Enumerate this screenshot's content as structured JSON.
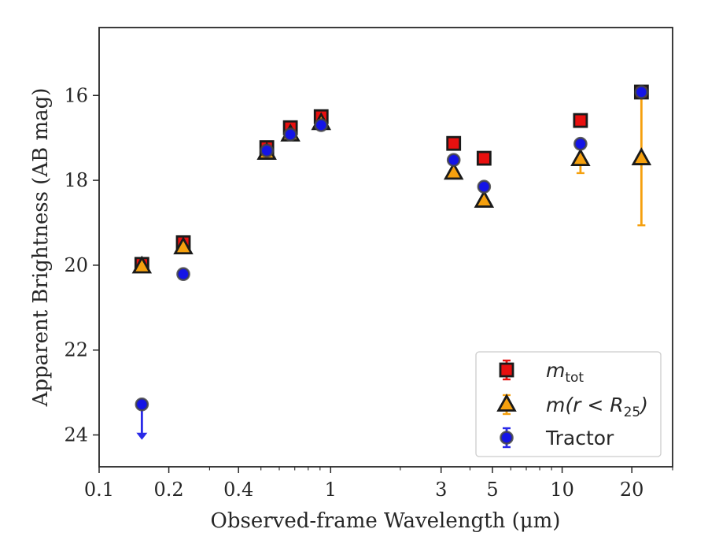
{
  "chart_data": {
    "type": "scatter",
    "title": "",
    "xlabel": "Observed-frame Wavelength (μm)",
    "ylabel": "Apparent Brightness (AB mag)",
    "xscale": "log",
    "xlim": [
      0.1,
      30
    ],
    "ylim": [
      24.75,
      14.4
    ],
    "y_inverted": true,
    "x_ticks": [
      {
        "value": 0.1,
        "label": "0.1"
      },
      {
        "value": 0.2,
        "label": "0.2"
      },
      {
        "value": 0.4,
        "label": "0.4"
      },
      {
        "value": 1,
        "label": "1"
      },
      {
        "value": 3,
        "label": "3"
      },
      {
        "value": 5,
        "label": "5"
      },
      {
        "value": 10,
        "label": "10"
      },
      {
        "value": 20,
        "label": "20"
      }
    ],
    "y_ticks": [
      {
        "value": 16,
        "label": "16"
      },
      {
        "value": 18,
        "label": "18"
      },
      {
        "value": 20,
        "label": "20"
      },
      {
        "value": 22,
        "label": "22"
      },
      {
        "value": 24,
        "label": "24"
      }
    ],
    "legend_position": "lower-right",
    "series": [
      {
        "key": "mtot",
        "legend": {
          "base": "m",
          "sub": "tot",
          "suffix": ""
        },
        "marker": "square",
        "color": "#e8100f",
        "edge": "#1a1a1a",
        "errcolor": "#e8100f",
        "points": [
          {
            "x": 0.153,
            "y": 19.98,
            "err": 0.08
          },
          {
            "x": 0.231,
            "y": 19.47,
            "err": 0.06
          },
          {
            "x": 0.53,
            "y": 17.23,
            "err": 0.05
          },
          {
            "x": 0.67,
            "y": 16.76,
            "err": 0.05
          },
          {
            "x": 0.91,
            "y": 16.5,
            "err": 0.05
          },
          {
            "x": 3.4,
            "y": 17.13,
            "err": 0.03
          },
          {
            "x": 4.6,
            "y": 17.48,
            "err": 0.03
          },
          {
            "x": 12.0,
            "y": 16.59,
            "err": 0.03
          },
          {
            "x": 22.0,
            "y": 15.92,
            "err": 0.03
          }
        ]
      },
      {
        "key": "mr25",
        "legend": {
          "base": "m(r < R",
          "sub": "25",
          "suffix": ")"
        },
        "marker": "triangle",
        "color": "#f5a00e",
        "edge": "#1a1a1a",
        "errcolor": "#f5a00e",
        "points": [
          {
            "x": 0.153,
            "y": 20.03,
            "err": 0.05
          },
          {
            "x": 0.231,
            "y": 19.58,
            "err": 0.05
          },
          {
            "x": 0.53,
            "y": 17.35,
            "err": 0.05
          },
          {
            "x": 0.67,
            "y": 16.92,
            "err": 0.05
          },
          {
            "x": 0.91,
            "y": 16.65,
            "err": 0.05
          },
          {
            "x": 3.4,
            "y": 17.82,
            "err": 0.05
          },
          {
            "x": 4.6,
            "y": 18.48,
            "err": 0.05
          },
          {
            "x": 12.0,
            "y": 17.5,
            "err": 0.33
          },
          {
            "x": 22.0,
            "y": 17.48,
            "err": 1.58
          }
        ]
      },
      {
        "key": "tractor",
        "legend": {
          "base": "Tractor",
          "sub": "",
          "suffix": ""
        },
        "marker": "circle",
        "color": "#1414e6",
        "edge": "#454545",
        "errcolor": "#2a2ae8",
        "points": [
          {
            "x": 0.153,
            "y": 23.28,
            "err": 0,
            "upper_limit": true
          },
          {
            "x": 0.231,
            "y": 20.21,
            "err": 0.05
          },
          {
            "x": 0.53,
            "y": 17.3,
            "err": 0.05
          },
          {
            "x": 0.67,
            "y": 16.92,
            "err": 0.05
          },
          {
            "x": 0.91,
            "y": 16.7,
            "err": 0.05
          },
          {
            "x": 3.4,
            "y": 17.52,
            "err": 0.05
          },
          {
            "x": 4.6,
            "y": 18.15,
            "err": 0.05
          },
          {
            "x": 12.0,
            "y": 17.14,
            "err": 0.05
          },
          {
            "x": 22.0,
            "y": 15.92,
            "err": 0.05
          }
        ]
      }
    ]
  }
}
